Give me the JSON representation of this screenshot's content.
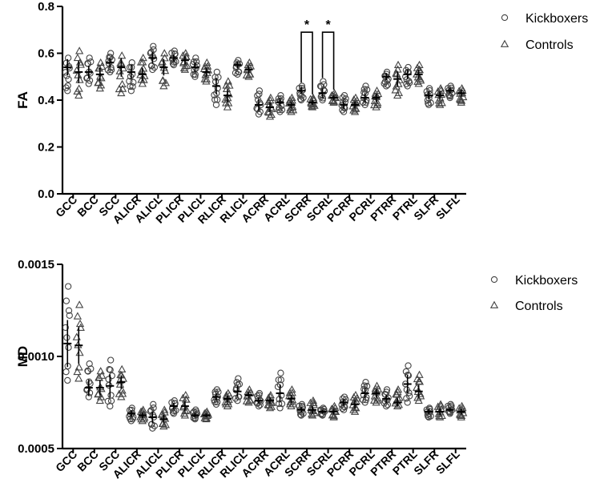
{
  "chart_data": [
    {
      "type": "scatter",
      "ylabel": "FA",
      "ylim": [
        0.0,
        0.8
      ],
      "yticks": [
        "0.0",
        "0.2",
        "0.4",
        "0.6",
        "0.8"
      ],
      "categories": [
        "GCC",
        "BCC",
        "SCC",
        "ALICR",
        "ALICL",
        "PLICR",
        "PLICL",
        "RLICR",
        "RLICL",
        "ACRR",
        "ACRL",
        "SCRR",
        "SCRL",
        "PCRR",
        "PCRL",
        "PTRR",
        "PTRL",
        "SLFR",
        "SLFL"
      ],
      "series": [
        {
          "name": "Kickboxers",
          "marker": "circle",
          "mean": [
            0.54,
            0.52,
            0.56,
            0.52,
            0.58,
            0.58,
            0.54,
            0.46,
            0.55,
            0.38,
            0.39,
            0.44,
            0.43,
            0.38,
            0.41,
            0.5,
            0.51,
            0.42,
            0.44
          ],
          "min": [
            0.44,
            0.47,
            0.52,
            0.44,
            0.53,
            0.55,
            0.5,
            0.38,
            0.51,
            0.34,
            0.35,
            0.4,
            0.4,
            0.35,
            0.38,
            0.46,
            0.46,
            0.38,
            0.41
          ],
          "max": [
            0.58,
            0.58,
            0.6,
            0.56,
            0.63,
            0.61,
            0.58,
            0.52,
            0.57,
            0.44,
            0.42,
            0.46,
            0.48,
            0.42,
            0.46,
            0.52,
            0.54,
            0.45,
            0.46
          ]
        },
        {
          "name": "Controls",
          "marker": "triangle",
          "mean": [
            0.52,
            0.51,
            0.54,
            0.51,
            0.54,
            0.57,
            0.52,
            0.42,
            0.53,
            0.37,
            0.38,
            0.39,
            0.41,
            0.38,
            0.41,
            0.49,
            0.51,
            0.42,
            0.43
          ],
          "min": [
            0.42,
            0.45,
            0.43,
            0.47,
            0.46,
            0.53,
            0.48,
            0.37,
            0.5,
            0.33,
            0.35,
            0.37,
            0.39,
            0.35,
            0.37,
            0.42,
            0.47,
            0.38,
            0.39
          ],
          "max": [
            0.61,
            0.56,
            0.59,
            0.58,
            0.6,
            0.6,
            0.56,
            0.48,
            0.56,
            0.41,
            0.41,
            0.41,
            0.43,
            0.41,
            0.44,
            0.55,
            0.55,
            0.45,
            0.45
          ]
        }
      ],
      "annotations": [
        {
          "text": "*",
          "between": [
            "SCRR Kickboxers",
            "SCRR Controls"
          ]
        },
        {
          "text": "*",
          "between": [
            "SCRL Kickboxers",
            "SCRL Controls"
          ]
        }
      ],
      "legend": "top-right"
    },
    {
      "type": "scatter",
      "ylabel": "MD",
      "ylim": [
        0.0005,
        0.0015
      ],
      "yticks": [
        "0.0005",
        "0.0010",
        "0.0015"
      ],
      "categories": [
        "GCC",
        "BCC",
        "SCC",
        "ALICR",
        "ALICL",
        "PLICR",
        "PLICL",
        "RLICR",
        "RLICL",
        "ACRR",
        "ACRL",
        "SCRR",
        "SCRL",
        "PCRR",
        "PCRL",
        "PTRR",
        "PTRL",
        "SLFR",
        "SLFL"
      ],
      "series": [
        {
          "name": "Kickboxers",
          "marker": "circle",
          "mean": [
            0.00107,
            0.00083,
            0.00084,
            0.00069,
            0.00067,
            0.00073,
            0.00068,
            0.00078,
            0.00081,
            0.00076,
            0.0008,
            0.00071,
            0.0007,
            0.00075,
            0.0008,
            0.00077,
            0.00085,
            0.0007,
            0.00071
          ],
          "min": [
            0.00087,
            0.00078,
            0.00073,
            0.00065,
            0.00061,
            0.00069,
            0.00066,
            0.00074,
            0.00076,
            0.00073,
            0.00072,
            0.00068,
            0.00068,
            0.00071,
            0.00075,
            0.00073,
            0.00075,
            0.00067,
            0.00069
          ],
          "max": [
            0.00138,
            0.00096,
            0.00098,
            0.00072,
            0.00074,
            0.00076,
            0.00071,
            0.00082,
            0.00088,
            0.0008,
            0.00091,
            0.00074,
            0.00072,
            0.00078,
            0.00086,
            0.00082,
            0.00095,
            0.00072,
            0.00074
          ]
        },
        {
          "name": "Controls",
          "marker": "triangle",
          "mean": [
            0.00106,
            0.00083,
            0.00086,
            0.00068,
            0.00066,
            0.00073,
            0.00068,
            0.00077,
            0.00079,
            0.00076,
            0.00077,
            0.00071,
            0.0007,
            0.00074,
            0.0008,
            0.00075,
            0.00081,
            0.0007,
            0.0007
          ],
          "min": [
            0.00088,
            0.00076,
            0.00078,
            0.00065,
            0.00062,
            0.00068,
            0.00066,
            0.00073,
            0.00075,
            0.00072,
            0.00073,
            0.00068,
            0.00067,
            0.0007,
            0.00075,
            0.00073,
            0.00076,
            0.00067,
            0.00067
          ],
          "max": [
            0.00128,
            0.00092,
            0.00093,
            0.00071,
            0.00071,
            0.00079,
            0.0007,
            0.0008,
            0.00082,
            0.00079,
            0.00082,
            0.00076,
            0.00073,
            0.00079,
            0.00084,
            0.00082,
            0.0009,
            0.00074,
            0.00073
          ]
        }
      ],
      "legend": "top-right"
    }
  ]
}
